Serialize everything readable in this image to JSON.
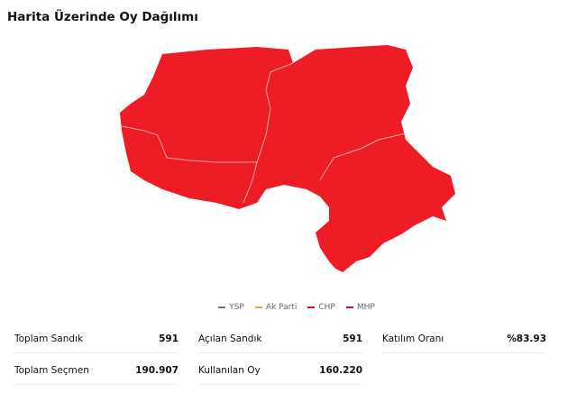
{
  "title": "Harita Üzerinde Oy Dağılımı",
  "map": {
    "fill": "#ee1c25",
    "border": "#f3a9ad"
  },
  "legend": [
    {
      "label": "YSP",
      "color": "#5b7f86"
    },
    {
      "label": "Ak Parti",
      "color": "#f7a04b"
    },
    {
      "label": "CHP",
      "color": "#e30a17"
    },
    {
      "label": "MHP",
      "color": "#9b1b4a"
    }
  ],
  "stats": [
    {
      "label": "Toplam Sandık",
      "value": "591"
    },
    {
      "label": "Açılan Sandık",
      "value": "591"
    },
    {
      "label": "Katılım Oranı",
      "value": "%83.93"
    },
    {
      "label": "Toplam Seçmen",
      "value": "190.907"
    },
    {
      "label": "Kullanılan Oy",
      "value": "160.220"
    }
  ]
}
